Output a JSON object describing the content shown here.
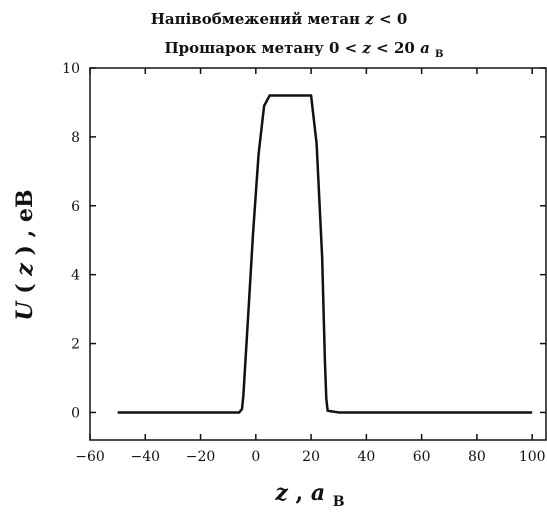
{
  "chart_data": {
    "type": "line",
    "title": {
      "line1_text": "Напівобмежений метан",
      "line1_math_var": "z",
      "line1_math_rest": " < 0",
      "line2_text": "Прошарок метану",
      "line2_math_a": "0 < ",
      "line2_math_var": "z",
      "line2_math_b": " < 20",
      "line2_math_a_sym": "a",
      "line2_math_sub": "B"
    },
    "xlabel": {
      "var": "z",
      "sep": ", ",
      "unit": "a",
      "unit_sub": "B"
    },
    "ylabel": {
      "fn": "U",
      "open": "(",
      "var": "z",
      "close": ")",
      "rest": ", eB"
    },
    "xlim": [
      -60,
      105
    ],
    "ylim": [
      -0.8,
      10
    ],
    "xticks": [
      -60,
      -40,
      -20,
      0,
      20,
      40,
      60,
      80,
      100
    ],
    "yticks": [
      0,
      2,
      4,
      6,
      8,
      10
    ],
    "xtick_labels": [
      "−60",
      "−40",
      "−20",
      "0",
      "20",
      "40",
      "60",
      "80",
      "100"
    ],
    "ytick_labels": [
      "0",
      "2",
      "4",
      "6",
      "8",
      "10"
    ],
    "grid": false,
    "line_color": "#111111",
    "series": [
      {
        "x": [
          -50,
          -10,
          -6,
          -5,
          -4.5,
          -3,
          -1,
          1,
          3,
          5,
          20,
          22,
          24,
          25,
          25.5,
          26,
          30,
          60,
          100
        ],
        "y": [
          0.0,
          0.0,
          0.0,
          0.1,
          0.5,
          2.5,
          5.2,
          7.5,
          8.9,
          9.2,
          9.2,
          7.8,
          4.5,
          1.5,
          0.4,
          0.05,
          0.0,
          0.0,
          0.0
        ]
      }
    ]
  }
}
